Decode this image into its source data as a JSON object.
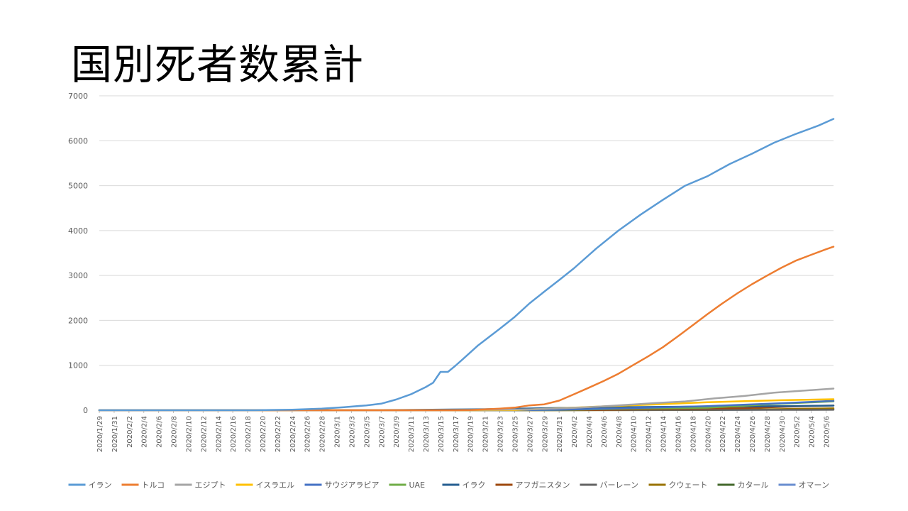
{
  "slide": {
    "title": "国別死者数累計"
  },
  "chart_data": {
    "type": "line",
    "title": "",
    "xlabel": "",
    "ylabel": "",
    "ylim": [
      0,
      7000
    ],
    "yticks": [
      0,
      1000,
      2000,
      3000,
      4000,
      5000,
      6000,
      7000
    ],
    "grid": true,
    "legend_position": "bottom",
    "x_start": "2020/1/29",
    "x_end": "2020/5/7",
    "x_tick_labels": [
      "2020/1/29",
      "2020/1/31",
      "2020/2/2",
      "2020/2/4",
      "2020/2/6",
      "2020/2/8",
      "2020/2/10",
      "2020/2/12",
      "2020/2/14",
      "2020/2/16",
      "2020/2/18",
      "2020/2/20",
      "2020/2/22",
      "2020/2/24",
      "2020/2/26",
      "2020/2/28",
      "2020/3/1",
      "2020/3/3",
      "2020/3/5",
      "2020/3/7",
      "2020/3/9",
      "2020/3/11",
      "2020/3/13",
      "2020/3/15",
      "2020/3/17",
      "2020/3/19",
      "2020/3/21",
      "2020/3/23",
      "2020/3/25",
      "2020/3/27",
      "2020/3/29",
      "2020/3/31",
      "2020/4/2",
      "2020/4/4",
      "2020/4/6",
      "2020/4/8",
      "2020/4/10",
      "2020/4/12",
      "2020/4/14",
      "2020/4/16",
      "2020/4/18",
      "2020/4/20",
      "2020/4/22",
      "2020/4/24",
      "2020/4/26",
      "2020/4/28",
      "2020/4/30",
      "2020/5/2",
      "2020/5/4",
      "2020/5/6"
    ],
    "series": [
      {
        "name": "イラン",
        "color": "#5B9BD5",
        "points": [
          [
            "2020/1/29",
            0
          ],
          [
            "2020/2/19",
            0
          ],
          [
            "2020/2/24",
            12
          ],
          [
            "2020/2/28",
            34
          ],
          [
            "2020/3/2",
            66
          ],
          [
            "2020/3/5",
            107
          ],
          [
            "2020/3/7",
            145
          ],
          [
            "2020/3/9",
            237
          ],
          [
            "2020/3/11",
            354
          ],
          [
            "2020/3/13",
            514
          ],
          [
            "2020/3/14",
            611
          ],
          [
            "2020/3/15",
            853
          ],
          [
            "2020/3/16",
            853
          ],
          [
            "2020/3/17",
            988
          ],
          [
            "2020/3/18",
            1135
          ],
          [
            "2020/3/20",
            1433
          ],
          [
            "2020/3/23",
            1812
          ],
          [
            "2020/3/25",
            2077
          ],
          [
            "2020/3/27",
            2378
          ],
          [
            "2020/3/29",
            2640
          ],
          [
            "2020/3/31",
            2898
          ],
          [
            "2020/4/2",
            3160
          ],
          [
            "2020/4/5",
            3600
          ],
          [
            "2020/4/8",
            4000
          ],
          [
            "2020/4/11",
            4357
          ],
          [
            "2020/4/14",
            4683
          ],
          [
            "2020/4/17",
            5000
          ],
          [
            "2020/4/20",
            5209
          ],
          [
            "2020/4/23",
            5481
          ],
          [
            "2020/4/26",
            5710
          ],
          [
            "2020/4/29",
            5957
          ],
          [
            "2020/5/2",
            6156
          ],
          [
            "2020/5/5",
            6340
          ],
          [
            "2020/5/7",
            6486
          ]
        ]
      },
      {
        "name": "トルコ",
        "color": "#ED7D31",
        "points": [
          [
            "2020/1/29",
            0
          ],
          [
            "2020/3/17",
            0
          ],
          [
            "2020/3/19",
            4
          ],
          [
            "2020/3/21",
            21
          ],
          [
            "2020/3/23",
            37
          ],
          [
            "2020/3/25",
            59
          ],
          [
            "2020/3/27",
            108
          ],
          [
            "2020/3/29",
            131
          ],
          [
            "2020/3/31",
            214
          ],
          [
            "2020/4/2",
            356
          ],
          [
            "2020/4/4",
            501
          ],
          [
            "2020/4/6",
            649
          ],
          [
            "2020/4/8",
            812
          ],
          [
            "2020/4/10",
            1006
          ],
          [
            "2020/4/12",
            1198
          ],
          [
            "2020/4/14",
            1403
          ],
          [
            "2020/4/16",
            1643
          ],
          [
            "2020/4/18",
            1890
          ],
          [
            "2020/4/20",
            2140
          ],
          [
            "2020/4/22",
            2376
          ],
          [
            "2020/4/24",
            2600
          ],
          [
            "2020/4/26",
            2805
          ],
          [
            "2020/4/28",
            2992
          ],
          [
            "2020/4/30",
            3174
          ],
          [
            "2020/5/2",
            3336
          ],
          [
            "2020/5/4",
            3461
          ],
          [
            "2020/5/6",
            3584
          ],
          [
            "2020/5/7",
            3641
          ]
        ]
      },
      {
        "name": "エジプト",
        "color": "#A5A5A5",
        "points": [
          [
            "2020/1/29",
            0
          ],
          [
            "2020/3/7",
            0
          ],
          [
            "2020/3/15",
            2
          ],
          [
            "2020/3/21",
            10
          ],
          [
            "2020/3/27",
            21
          ],
          [
            "2020/4/1",
            46
          ],
          [
            "2020/4/5",
            78
          ],
          [
            "2020/4/9",
            118
          ],
          [
            "2020/4/13",
            159
          ],
          [
            "2020/4/17",
            196
          ],
          [
            "2020/4/21",
            264
          ],
          [
            "2020/4/25",
            317
          ],
          [
            "2020/4/29",
            392
          ],
          [
            "2020/5/3",
            436
          ],
          [
            "2020/5/7",
            482
          ]
        ]
      },
      {
        "name": "イスラエル",
        "color": "#FFC000",
        "points": [
          [
            "2020/1/29",
            0
          ],
          [
            "2020/3/19",
            0
          ],
          [
            "2020/3/25",
            5
          ],
          [
            "2020/3/31",
            43
          ],
          [
            "2020/4/5",
            79
          ],
          [
            "2020/4/10",
            110
          ],
          [
            "2020/4/15",
            142
          ],
          [
            "2020/4/20",
            177
          ],
          [
            "2020/4/25",
            201
          ],
          [
            "2020/4/30",
            223
          ],
          [
            "2020/5/7",
            245
          ]
        ]
      },
      {
        "name": "サウジアラビア",
        "color": "#4472C4",
        "points": [
          [
            "2020/1/29",
            0
          ],
          [
            "2020/3/23",
            0
          ],
          [
            "2020/3/25",
            1
          ],
          [
            "2020/3/31",
            10
          ],
          [
            "2020/4/10",
            47
          ],
          [
            "2020/4/20",
            92
          ],
          [
            "2020/4/30",
            157
          ],
          [
            "2020/5/7",
            209
          ]
        ]
      },
      {
        "name": "UAE",
        "color": "#70AD47",
        "points": [
          [
            "2020/1/29",
            0
          ],
          [
            "2020/3/19",
            0
          ],
          [
            "2020/3/25",
            2
          ],
          [
            "2020/4/1",
            8
          ],
          [
            "2020/4/10",
            37
          ],
          [
            "2020/4/20",
            56
          ],
          [
            "2020/4/30",
            146
          ],
          [
            "2020/5/7",
            198
          ]
        ]
      },
      {
        "name": "イラク",
        "color": "#255E91",
        "points": [
          [
            "2020/1/29",
            0
          ],
          [
            "2020/3/1",
            0
          ],
          [
            "2020/3/10",
            7
          ],
          [
            "2020/3/20",
            20
          ],
          [
            "2020/3/31",
            50
          ],
          [
            "2020/4/10",
            69
          ],
          [
            "2020/4/20",
            82
          ],
          [
            "2020/4/30",
            92
          ],
          [
            "2020/5/7",
            102
          ]
        ]
      },
      {
        "name": "アフガニスタン",
        "color": "#9E480E",
        "points": [
          [
            "2020/1/29",
            0
          ],
          [
            "2020/3/19",
            0
          ],
          [
            "2020/3/25",
            1
          ],
          [
            "2020/4/5",
            7
          ],
          [
            "2020/4/15",
            30
          ],
          [
            "2020/4/25",
            47
          ],
          [
            "2020/5/2",
            85
          ],
          [
            "2020/5/7",
            104
          ]
        ]
      },
      {
        "name": "バーレーン",
        "color": "#636363",
        "points": [
          [
            "2020/1/29",
            0
          ],
          [
            "2020/3/13",
            0
          ],
          [
            "2020/3/20",
            1
          ],
          [
            "2020/4/1",
            4
          ],
          [
            "2020/4/15",
            7
          ],
          [
            "2020/5/1",
            8
          ],
          [
            "2020/5/7",
            10
          ]
        ]
      },
      {
        "name": "クウェート",
        "color": "#997300",
        "points": [
          [
            "2020/1/29",
            0
          ],
          [
            "2020/4/1",
            0
          ],
          [
            "2020/4/10",
            1
          ],
          [
            "2020/4/20",
            7
          ],
          [
            "2020/4/30",
            26
          ],
          [
            "2020/5/7",
            42
          ]
        ]
      },
      {
        "name": "カタール",
        "color": "#43682B",
        "points": [
          [
            "2020/1/29",
            0
          ],
          [
            "2020/3/27",
            0
          ],
          [
            "2020/4/5",
            4
          ],
          [
            "2020/4/20",
            10
          ],
          [
            "2020/5/7",
            14
          ]
        ]
      },
      {
        "name": "オマーン",
        "color": "#698ED0",
        "points": [
          [
            "2020/1/29",
            0
          ],
          [
            "2020/3/30",
            0
          ],
          [
            "2020/4/5",
            2
          ],
          [
            "2020/4/20",
            4
          ],
          [
            "2020/5/7",
            17
          ]
        ]
      }
    ]
  }
}
